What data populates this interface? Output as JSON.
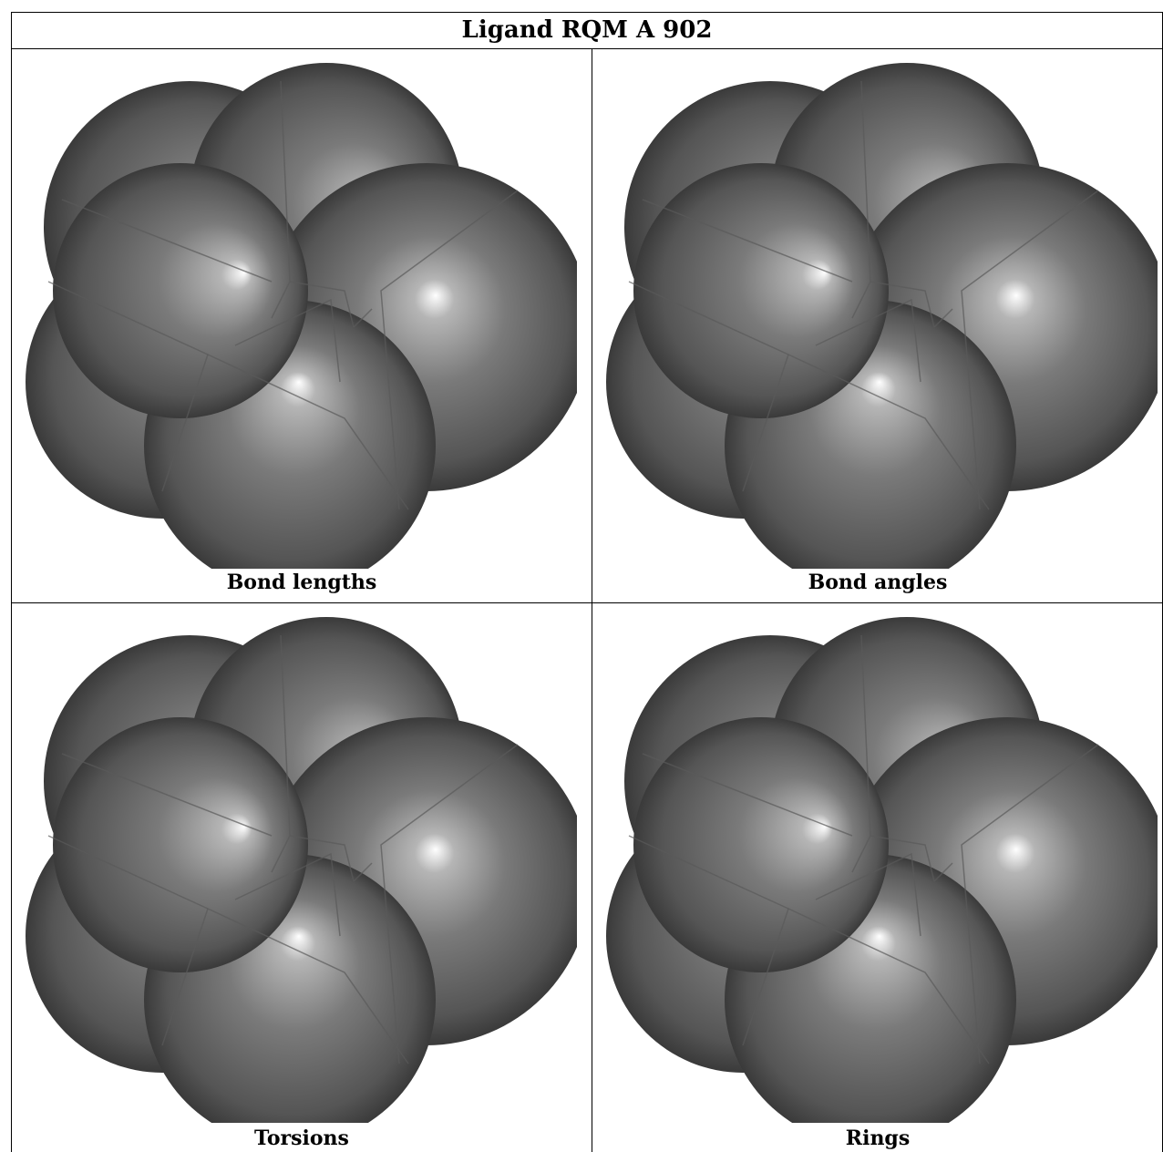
{
  "title": "Ligand RQM A 902",
  "panels": [
    {
      "caption": "Bond lengths"
    },
    {
      "caption": "Bond angles"
    },
    {
      "caption": "Torsions"
    },
    {
      "caption": "Rings"
    }
  ],
  "colors": {
    "surface_dark": "#3a3a3a",
    "surface_mid": "#7a7a7a",
    "highlight": "#ffffff",
    "seam": "#5a5a5a",
    "border": "#000000"
  }
}
